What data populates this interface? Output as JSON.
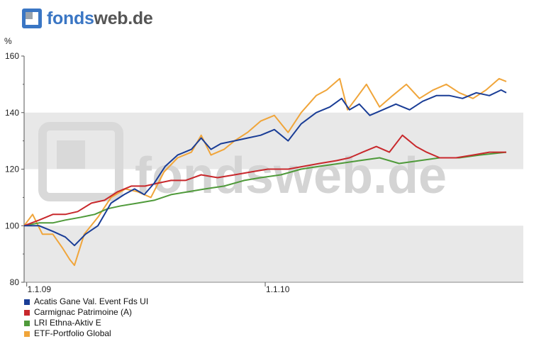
{
  "brand": {
    "part1": "fonds",
    "part2": "web.de",
    "watermark": "fondsweb.de"
  },
  "chart_data": {
    "type": "line",
    "ylabel": "%",
    "ylim": [
      80,
      160
    ],
    "yticks": [
      80,
      100,
      120,
      140,
      160
    ],
    "xlim": [
      "2008-12-28",
      "2011-01-31"
    ],
    "xticks": [
      {
        "date": "2009-01-01",
        "label": "1.1.09"
      },
      {
        "date": "2010-01-01",
        "label": "1.1.10"
      }
    ],
    "bands": [
      [
        80,
        100
      ],
      [
        120,
        140
      ]
    ],
    "grid": true,
    "legend_position": "bottom-left",
    "series": [
      {
        "name": "Acatis Gane Val. Event Fds UI",
        "color": "#1a3d96",
        "points": [
          [
            "2008-12-28",
            100
          ],
          [
            "2009-01-20",
            100
          ],
          [
            "2009-02-10",
            98
          ],
          [
            "2009-03-01",
            96
          ],
          [
            "2009-03-15",
            93
          ],
          [
            "2009-04-01",
            97
          ],
          [
            "2009-04-20",
            100
          ],
          [
            "2009-05-10",
            108
          ],
          [
            "2009-05-30",
            111
          ],
          [
            "2009-06-15",
            113
          ],
          [
            "2009-06-30",
            111
          ],
          [
            "2009-07-15",
            115
          ],
          [
            "2009-08-01",
            121
          ],
          [
            "2009-08-20",
            125
          ],
          [
            "2009-09-10",
            127
          ],
          [
            "2009-09-25",
            131
          ],
          [
            "2009-10-10",
            127
          ],
          [
            "2009-10-25",
            129
          ],
          [
            "2009-11-15",
            130
          ],
          [
            "2009-12-05",
            131
          ],
          [
            "2009-12-25",
            132
          ],
          [
            "2010-01-15",
            134
          ],
          [
            "2010-02-05",
            130
          ],
          [
            "2010-02-25",
            136
          ],
          [
            "2010-03-20",
            140
          ],
          [
            "2010-04-10",
            142
          ],
          [
            "2010-04-28",
            145
          ],
          [
            "2010-05-10",
            141
          ],
          [
            "2010-05-25",
            143
          ],
          [
            "2010-06-10",
            139
          ],
          [
            "2010-06-30",
            141
          ],
          [
            "2010-07-20",
            143
          ],
          [
            "2010-08-10",
            141
          ],
          [
            "2010-08-30",
            144
          ],
          [
            "2010-09-20",
            146
          ],
          [
            "2010-10-10",
            146
          ],
          [
            "2010-10-30",
            145
          ],
          [
            "2010-11-20",
            147
          ],
          [
            "2010-12-10",
            146
          ],
          [
            "2010-12-28",
            148
          ],
          [
            "2011-01-05",
            147
          ]
        ]
      },
      {
        "name": "Carmignac Patrimoine (A)",
        "color": "#c8282c",
        "points": [
          [
            "2008-12-28",
            100
          ],
          [
            "2009-01-20",
            102
          ],
          [
            "2009-02-10",
            104
          ],
          [
            "2009-03-01",
            104
          ],
          [
            "2009-03-20",
            105
          ],
          [
            "2009-04-10",
            108
          ],
          [
            "2009-04-30",
            109
          ],
          [
            "2009-05-20",
            112
          ],
          [
            "2009-06-10",
            114
          ],
          [
            "2009-07-01",
            114
          ],
          [
            "2009-07-20",
            115
          ],
          [
            "2009-08-10",
            116
          ],
          [
            "2009-09-01",
            116
          ],
          [
            "2009-09-25",
            118
          ],
          [
            "2009-10-20",
            117
          ],
          [
            "2009-11-15",
            118
          ],
          [
            "2009-12-10",
            119
          ],
          [
            "2010-01-05",
            120
          ],
          [
            "2010-02-05",
            120
          ],
          [
            "2010-03-01",
            121
          ],
          [
            "2010-03-25",
            122
          ],
          [
            "2010-04-20",
            123
          ],
          [
            "2010-05-10",
            124
          ],
          [
            "2010-05-30",
            126
          ],
          [
            "2010-06-20",
            128
          ],
          [
            "2010-07-10",
            126
          ],
          [
            "2010-07-30",
            132
          ],
          [
            "2010-08-20",
            128
          ],
          [
            "2010-09-05",
            126
          ],
          [
            "2010-09-25",
            124
          ],
          [
            "2010-10-20",
            124
          ],
          [
            "2010-11-15",
            125
          ],
          [
            "2010-12-10",
            126
          ],
          [
            "2011-01-05",
            126
          ]
        ]
      },
      {
        "name": "LRI Ethna-Aktiv E",
        "color": "#4f9a3a",
        "points": [
          [
            "2008-12-28",
            100
          ],
          [
            "2009-01-20",
            101
          ],
          [
            "2009-02-10",
            101
          ],
          [
            "2009-03-01",
            102
          ],
          [
            "2009-03-25",
            103
          ],
          [
            "2009-04-15",
            104
          ],
          [
            "2009-05-05",
            106
          ],
          [
            "2009-05-25",
            107
          ],
          [
            "2009-06-20",
            108
          ],
          [
            "2009-07-15",
            109
          ],
          [
            "2009-08-10",
            111
          ],
          [
            "2009-09-05",
            112
          ],
          [
            "2009-10-01",
            113
          ],
          [
            "2009-10-30",
            114
          ],
          [
            "2009-11-30",
            116
          ],
          [
            "2009-12-25",
            117
          ],
          [
            "2010-01-25",
            118
          ],
          [
            "2010-02-25",
            120
          ],
          [
            "2010-03-25",
            121
          ],
          [
            "2010-04-25",
            122
          ],
          [
            "2010-05-25",
            123
          ],
          [
            "2010-06-25",
            124
          ],
          [
            "2010-07-25",
            122
          ],
          [
            "2010-08-25",
            123
          ],
          [
            "2010-09-25",
            124
          ],
          [
            "2010-10-25",
            124
          ],
          [
            "2010-11-25",
            125
          ],
          [
            "2011-01-05",
            126
          ]
        ]
      },
      {
        "name": "ETF-Portfolio Global",
        "color": "#f0a53a",
        "points": [
          [
            "2008-12-28",
            100
          ],
          [
            "2009-01-10",
            104
          ],
          [
            "2009-01-25",
            97
          ],
          [
            "2009-02-10",
            97
          ],
          [
            "2009-02-25",
            92
          ],
          [
            "2009-03-08",
            88
          ],
          [
            "2009-03-15",
            86
          ],
          [
            "2009-03-30",
            97
          ],
          [
            "2009-04-20",
            103
          ],
          [
            "2009-05-10",
            110
          ],
          [
            "2009-06-01",
            113
          ],
          [
            "2009-06-20",
            112
          ],
          [
            "2009-07-10",
            110
          ],
          [
            "2009-07-30",
            119
          ],
          [
            "2009-08-20",
            124
          ],
          [
            "2009-09-10",
            126
          ],
          [
            "2009-09-25",
            132
          ],
          [
            "2009-10-10",
            125
          ],
          [
            "2009-10-30",
            127
          ],
          [
            "2009-11-15",
            130
          ],
          [
            "2009-12-05",
            133
          ],
          [
            "2009-12-25",
            137
          ],
          [
            "2010-01-15",
            139
          ],
          [
            "2010-02-05",
            133
          ],
          [
            "2010-02-25",
            140
          ],
          [
            "2010-03-20",
            146
          ],
          [
            "2010-04-05",
            148
          ],
          [
            "2010-04-25",
            152
          ],
          [
            "2010-05-07",
            141
          ],
          [
            "2010-05-20",
            145
          ],
          [
            "2010-06-05",
            150
          ],
          [
            "2010-06-25",
            142
          ],
          [
            "2010-07-15",
            146
          ],
          [
            "2010-08-05",
            150
          ],
          [
            "2010-08-25",
            145
          ],
          [
            "2010-09-15",
            148
          ],
          [
            "2010-10-05",
            150
          ],
          [
            "2010-10-25",
            147
          ],
          [
            "2010-11-15",
            145
          ],
          [
            "2010-12-05",
            148
          ],
          [
            "2010-12-25",
            152
          ],
          [
            "2011-01-05",
            151
          ]
        ]
      }
    ]
  }
}
